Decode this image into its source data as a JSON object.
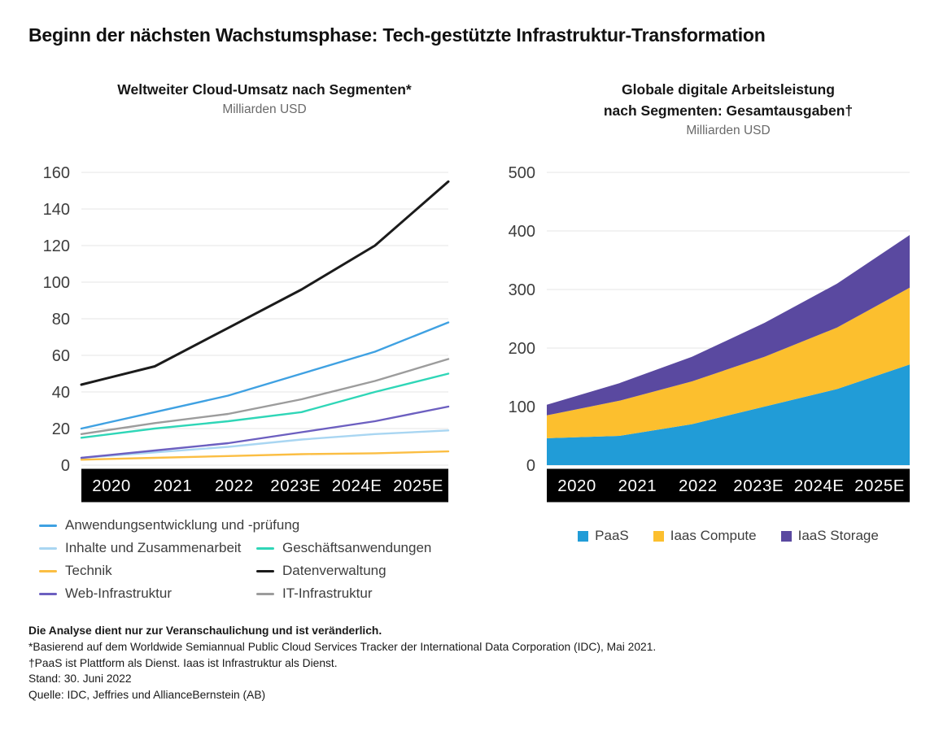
{
  "main_title": "Beginn der nächsten Wachstumsphase: Tech-gestützte Infrastruktur-Transformation",
  "left_chart": {
    "title": "Weltweiter Cloud-Umsatz nach Segmenten*",
    "subtitle": "Milliarden USD"
  },
  "right_chart": {
    "title_line1": "Globale digitale Arbeitsleistung",
    "title_line2": "nach Segmenten: Gesamtausgaben†",
    "subtitle": "Milliarden USD"
  },
  "colors": {
    "band_background": "#000000",
    "band_text": "#ffffff",
    "gridline": "#e4e4e4",
    "axis_text": "#3d3d3d"
  },
  "chart_data": [
    {
      "type": "line",
      "title": "Weltweiter Cloud-Umsatz nach Segmenten*",
      "subtitle": "Milliarden USD",
      "categories": [
        "2020",
        "2021",
        "2022",
        "2023E",
        "2024E",
        "2025E"
      ],
      "ylim": [
        0,
        160
      ],
      "ytick_step": 20,
      "yticks": [
        0,
        20,
        40,
        60,
        80,
        100,
        120,
        140,
        160
      ],
      "grid": true,
      "legend_position": "bottom-left",
      "series": [
        {
          "name": "Anwendungsentwicklung und -prüfung",
          "color": "#3fa1e2",
          "values": [
            20,
            29,
            38,
            50,
            62,
            78
          ]
        },
        {
          "name": "Inhalte und Zusammenarbeit",
          "color": "#a9d6f2",
          "values": [
            4,
            7,
            10,
            14,
            17,
            19
          ]
        },
        {
          "name": "Technik",
          "color": "#fbbe43",
          "values": [
            3,
            4,
            5,
            6,
            6.5,
            7.5
          ]
        },
        {
          "name": "Web-Infrastruktur",
          "color": "#6c5fc0",
          "values": [
            4,
            8,
            12,
            18,
            24,
            32
          ]
        },
        {
          "name": "Geschäftsanwendungen",
          "color": "#2fd6b7",
          "values": [
            15,
            20,
            24,
            29,
            40,
            50
          ]
        },
        {
          "name": "Datenverwaltung",
          "color": "#1b1b1b",
          "values": [
            44,
            54,
            75,
            96,
            120,
            155
          ]
        },
        {
          "name": "IT-Infrastruktur",
          "color": "#9c9c9c",
          "values": [
            17,
            23,
            28,
            36,
            46,
            58
          ]
        }
      ]
    },
    {
      "type": "area",
      "stacked": true,
      "title": "Globale digitale Arbeitsleistung nach Segmenten: Gesamtausgaben†",
      "subtitle": "Milliarden USD",
      "categories": [
        "2020",
        "2021",
        "2022",
        "2023E",
        "2024E",
        "2025E"
      ],
      "ylim": [
        0,
        500
      ],
      "ytick_step": 100,
      "yticks": [
        0,
        100,
        200,
        300,
        400,
        500
      ],
      "grid": true,
      "legend_position": "bottom-center",
      "series": [
        {
          "name": "PaaS",
          "color": "#219cd7",
          "values": [
            46,
            50,
            70,
            100,
            130,
            172
          ]
        },
        {
          "name": "Iaas Compute",
          "color": "#fcbf2e",
          "values": [
            39,
            60,
            73,
            85,
            105,
            131
          ]
        },
        {
          "name": "IaaS Storage",
          "color": "#5a49a0",
          "values": [
            18,
            30,
            42,
            58,
            75,
            90
          ]
        }
      ]
    }
  ],
  "left_legend_rows": [
    [
      "Anwendungsentwicklung und -prüfung"
    ],
    [
      "Inhalte und Zusammenarbeit",
      "Geschäftsanwendungen"
    ],
    [
      "Technik",
      "Datenverwaltung"
    ],
    [
      "Web-Infrastruktur",
      "IT-Infrastruktur"
    ]
  ],
  "footer": {
    "line1": "Die Analyse dient nur zur Veranschaulichung und ist veränderlich.",
    "line2": "*Basierend auf dem Worldwide Semiannual Public Cloud Services Tracker der International Data Corporation (IDC), Mai 2021.",
    "line3": "†PaaS ist Plattform als Dienst. Iaas ist Infrastruktur als Dienst.",
    "line4": "Stand: 30. Juni 2022",
    "line5": "Quelle: IDC, Jeffries und AllianceBernstein (AB)"
  }
}
